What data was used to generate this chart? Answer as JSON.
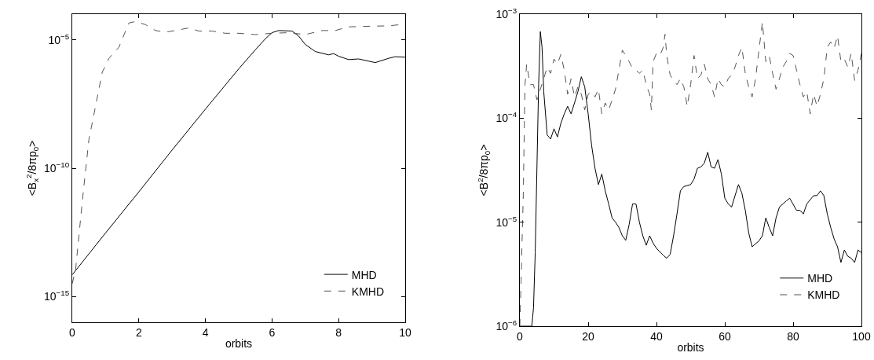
{
  "chart_data": [
    {
      "type": "line",
      "xlabel": "orbits",
      "ylabel": "<B$_{x}$$^{2}$/8πp$_{0}$>",
      "log": "y",
      "legend": "bottom right",
      "xlim": [
        0,
        10
      ],
      "xticks": [
        0,
        2,
        4,
        6,
        8,
        10
      ],
      "ylim": [
        1e-16,
        0.0001
      ],
      "yticks": [
        {
          "value": 1e-05,
          "label": "10$^{−5}$"
        },
        {
          "value": 1e-10,
          "label": "10$^{−10}$"
        },
        {
          "value": 1e-15,
          "label": "10$^{−15}$"
        }
      ],
      "series": [
        {
          "name": "MHD",
          "color": "#000000",
          "line_style": "solid",
          "x": [
            0,
            1,
            2,
            3,
            4,
            5,
            5.5,
            5.8,
            6,
            6.2,
            6.6,
            6.8,
            7,
            7.3,
            7.7,
            7.85,
            8,
            8.3,
            8.6,
            9.1,
            9.5,
            9.7,
            10
          ],
          "values": [
            7.1e-15,
            3e-13,
            1.2e-11,
            5.1e-10,
            2e-08,
            7.4e-07,
            4.1e-06,
            1.1e-05,
            1.9e-05,
            2.3e-05,
            2.2e-05,
            1.4e-05,
            6.6e-06,
            3.5e-06,
            2.6e-06,
            2.9e-06,
            2.3e-06,
            1.7e-06,
            1.8e-06,
            1.3e-06,
            1.9e-06,
            2.2e-06,
            2.1e-06
          ]
        },
        {
          "name": "KMHD",
          "color": "#555555",
          "line_style": "dashed",
          "x": [
            0,
            0.1,
            0.3,
            0.5,
            0.7,
            0.9,
            1.1,
            1.4,
            1.7,
            1.9,
            2.2,
            2.5,
            2.8,
            3.1,
            3.5,
            3.8,
            4.2,
            4.6,
            5,
            5.5,
            6,
            6.5,
            7,
            7.5,
            7.9,
            8.3,
            9,
            9.5,
            10
          ],
          "values": [
            3.2e-15,
            1.1e-14,
            4.8e-12,
            1.3e-09,
            2.6e-08,
            5.4e-07,
            1.9e-06,
            5.1e-06,
            4.5e-05,
            5.2e-05,
            3.9e-05,
            2.3e-05,
            2e-05,
            2.3e-05,
            2.9e-05,
            2.2e-05,
            2.2e-05,
            1.8e-05,
            1.8e-05,
            1.6e-05,
            1.8e-05,
            1.9e-05,
            1.6e-05,
            2.3e-05,
            2.3e-05,
            3.2e-05,
            3.4e-05,
            3.5e-05,
            4.1e-05
          ]
        }
      ]
    },
    {
      "type": "line",
      "xlabel": "orbits",
      "ylabel": "<B$^{2}$/8πp$_{0}$>",
      "log": "y",
      "legend": "bottom right",
      "xlim": [
        0,
        100
      ],
      "xticks": [
        0,
        20,
        40,
        60,
        80,
        100
      ],
      "ylim": [
        1e-06,
        0.001
      ],
      "yticks": [
        {
          "value": 1e-06,
          "label": "10$^{−6}$"
        },
        {
          "value": 1e-05,
          "label": "10$^{−5}$"
        },
        {
          "value": 0.0001,
          "label": "10$^{−4}$"
        },
        {
          "value": 0.001,
          "label": "10$^{−3}$"
        }
      ],
      "series": [
        {
          "name": "MHD",
          "color": "#000000",
          "line_style": "solid",
          "x": [
            0,
            3.5,
            4,
            4.5,
            5,
            5.5,
            6,
            6.5,
            7,
            8,
            9,
            10,
            11,
            12,
            13,
            14,
            15,
            16,
            17,
            18,
            19,
            20,
            21,
            22,
            23,
            24,
            25,
            26,
            27,
            28,
            29,
            30,
            31,
            32,
            33,
            34,
            35,
            36,
            37,
            38,
            39,
            40,
            42,
            43,
            44,
            45,
            46,
            47,
            48,
            50,
            51,
            52,
            53,
            54,
            55,
            56,
            57,
            58,
            59,
            60,
            61,
            62,
            63,
            64,
            65,
            66,
            67,
            68,
            69,
            70,
            71,
            72,
            73,
            74,
            75,
            76,
            78,
            79,
            81,
            82,
            83,
            84,
            86,
            87,
            88,
            89,
            90,
            91,
            92,
            93,
            94,
            95,
            96,
            97,
            98,
            99,
            100
          ],
          "values": [
            1e-06,
            1e-06,
            1.5e-06,
            5.1e-06,
            3.3e-05,
            0.00021,
            0.00068,
            0.00048,
            0.00018,
            6.9e-05,
            6.3e-05,
            7.9e-05,
            6.6e-05,
            8.9e-05,
            0.00011,
            0.00013,
            0.00011,
            0.00014,
            0.00018,
            0.00025,
            0.0002,
            0.00011,
            5.5e-05,
            3.3e-05,
            2.3e-05,
            2.9e-05,
            2e-05,
            1.5e-05,
            1.1e-05,
            1e-05,
            8.9e-06,
            7.4e-06,
            6.7e-06,
            9.5e-06,
            1.5e-05,
            1.5e-05,
            1e-05,
            7.4e-06,
            6e-06,
            7.4e-06,
            6.3e-06,
            5.6e-06,
            4.8e-06,
            4.5e-06,
            4.9e-06,
            7.4e-06,
            1.2e-05,
            2e-05,
            2.2e-05,
            2.3e-05,
            2.6e-05,
            3.3e-05,
            3.4e-05,
            3.7e-05,
            4.7e-05,
            3.4e-05,
            3.3e-05,
            4e-05,
            2.9e-05,
            1.7e-05,
            1.5e-05,
            1.4e-05,
            1.8e-05,
            2.3e-05,
            1.9e-05,
            1.3e-05,
            7.9e-06,
            5.8e-06,
            6.2e-06,
            6.6e-06,
            7.4e-06,
            1.1e-05,
            8.9e-06,
            7.4e-06,
            1.1e-05,
            1.4e-05,
            1.6e-05,
            1.7e-05,
            1.3e-05,
            1.3e-05,
            1.2e-05,
            1.5e-05,
            1.8e-05,
            1.8e-05,
            2e-05,
            1.8e-05,
            1.2e-05,
            8.9e-06,
            6.9e-06,
            5.8e-06,
            4.1e-06,
            5.4e-06,
            4.7e-06,
            4.5e-06,
            4.1e-06,
            5.4e-06,
            5.1e-06
          ]
        },
        {
          "name": "KMHD",
          "color": "#555555",
          "line_style": "dashed",
          "x": [
            0,
            1,
            1.5,
            2,
            3,
            4,
            5,
            6,
            7,
            8,
            9,
            10,
            11,
            12,
            13,
            14,
            15,
            16,
            17,
            18,
            19,
            20,
            21,
            22,
            23,
            24,
            25,
            26,
            27,
            28,
            29,
            30,
            31,
            32,
            33,
            34,
            35,
            36,
            37,
            38,
            38.5,
            39,
            40,
            41,
            42,
            42.5,
            43,
            44,
            45,
            46,
            47,
            48,
            49,
            50,
            51,
            52,
            53,
            54,
            55,
            56,
            57,
            58,
            59,
            60,
            61,
            62,
            63,
            64,
            65,
            66,
            67,
            68,
            69,
            70,
            71,
            72,
            73,
            74,
            75,
            76,
            77,
            78,
            79,
            80,
            81,
            82,
            83,
            84,
            85,
            86,
            87,
            88,
            89,
            90,
            91,
            92,
            93,
            94,
            95,
            96,
            97,
            98,
            99,
            100
          ],
          "values": [
            1e-06,
            1.8e-05,
            0.00021,
            0.00033,
            0.00021,
            0.00021,
            0.00015,
            0.00019,
            0.00024,
            0.00031,
            0.00027,
            0.00037,
            0.00033,
            0.00041,
            0.00029,
            0.00017,
            0.00024,
            0.00016,
            0.0002,
            0.00017,
            0.00012,
            0.00017,
            0.00018,
            0.00016,
            0.00019,
            0.00011,
            0.00014,
            0.00012,
            0.00015,
            0.00019,
            0.00029,
            0.00045,
            0.0004,
            0.00035,
            0.0003,
            0.00029,
            0.00027,
            0.00029,
            0.00021,
            0.00017,
            0.00012,
            0.00035,
            0.00042,
            0.0004,
            0.00048,
            0.00064,
            0.0004,
            0.00026,
            0.00023,
            0.00021,
            0.00024,
            0.0002,
            0.00013,
            0.00021,
            0.0004,
            0.00024,
            0.00026,
            0.00033,
            0.00024,
            0.00021,
            0.00016,
            0.00024,
            0.00021,
            0.0002,
            0.00024,
            0.00026,
            0.00031,
            0.0004,
            0.00048,
            0.00027,
            0.0002,
            0.00016,
            0.00024,
            0.00045,
            0.00084,
            0.00035,
            0.0004,
            0.00027,
            0.00019,
            0.00024,
            0.00031,
            0.00035,
            0.00042,
            0.0004,
            0.00029,
            0.00021,
            0.00016,
            0.00018,
            0.00011,
            0.00017,
            0.00013,
            0.00017,
            0.00024,
            0.00048,
            0.00054,
            0.00047,
            0.00062,
            0.00035,
            0.00037,
            0.00031,
            0.00042,
            0.00023,
            0.00029,
            0.00042
          ]
        }
      ]
    }
  ]
}
